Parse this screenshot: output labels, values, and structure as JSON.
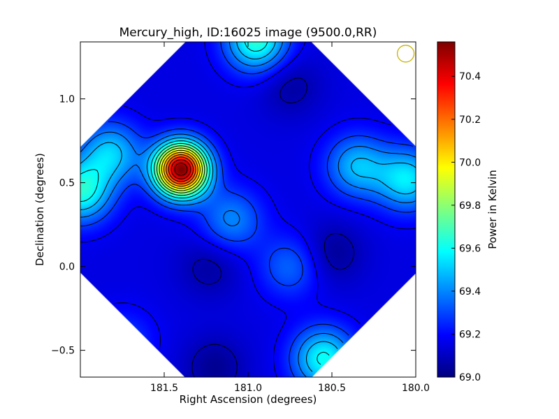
{
  "chart_data": {
    "type": "heatmap",
    "title": "Mercury_high, ID:16025 image (9500.0,RR)",
    "xlabel": "Right Ascension (degrees)",
    "ylabel": "Declination (degrees)",
    "xlim": [
      182.0,
      180.0
    ],
    "ylim": [
      -0.66,
      1.34
    ],
    "x_ticks": [
      181.5,
      181.0,
      180.5,
      180.0
    ],
    "x_tick_labels": [
      "181.5",
      "181.0",
      "180.5",
      "180.0"
    ],
    "y_ticks": [
      -0.5,
      0.0,
      0.5,
      1.0
    ],
    "y_tick_labels": [
      "−0.5",
      "0.0",
      "0.5",
      "1.0"
    ],
    "grid": false,
    "colormap": "jet",
    "colorbar": {
      "label": "Power in Kelvin",
      "range": [
        69.0,
        70.56
      ],
      "ticks": [
        69.0,
        69.2,
        69.4,
        69.6,
        69.8,
        70.0,
        70.2,
        70.4
      ],
      "tick_labels": [
        "69.0",
        "69.2",
        "69.4",
        "69.6",
        "69.8",
        "70.0",
        "70.2",
        "70.4"
      ]
    },
    "footprint": "diamond",
    "background_level": 69.15,
    "features": [
      {
        "ra": 181.4,
        "dec": 0.58,
        "peak": 70.56,
        "kind": "peak"
      },
      {
        "ra": 182.0,
        "dec": 0.45,
        "peak": 69.62,
        "kind": "peak"
      },
      {
        "ra": 181.82,
        "dec": 0.68,
        "peak": 69.5,
        "kind": "peak"
      },
      {
        "ra": 180.95,
        "dec": 1.35,
        "peak": 69.65,
        "kind": "peak"
      },
      {
        "ra": 180.35,
        "dec": 0.6,
        "peak": 69.48,
        "kind": "peak"
      },
      {
        "ra": 180.05,
        "dec": 0.52,
        "peak": 69.55,
        "kind": "peak"
      },
      {
        "ra": 181.1,
        "dec": 0.28,
        "peak": 69.4,
        "kind": "peak"
      },
      {
        "ra": 180.75,
        "dec": 0.0,
        "peak": 69.35,
        "kind": "peak"
      },
      {
        "ra": 180.55,
        "dec": -0.55,
        "peak": 69.6,
        "kind": "peak"
      },
      {
        "ra": 181.75,
        "dec": -0.45,
        "peak": 69.3,
        "kind": "peak"
      },
      {
        "ra": 180.5,
        "dec": 0.08,
        "peak": 69.03,
        "kind": "trough"
      },
      {
        "ra": 181.2,
        "dec": -0.6,
        "peak": 69.03,
        "kind": "trough"
      },
      {
        "ra": 180.75,
        "dec": 1.08,
        "peak": 69.05,
        "kind": "trough"
      },
      {
        "ra": 181.23,
        "dec": 0.0,
        "peak": 69.05,
        "kind": "trough"
      }
    ],
    "beam_marker": {
      "ra": 180.06,
      "dec": 1.27,
      "color": "#c8b400"
    }
  }
}
